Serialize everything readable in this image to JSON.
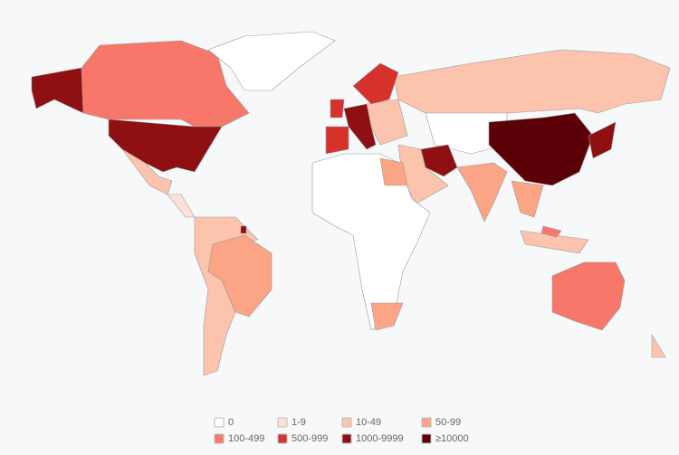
{
  "legend": {
    "items": [
      {
        "label": "0",
        "color": "#ffffff"
      },
      {
        "label": "1-9",
        "color": "#fde0d7"
      },
      {
        "label": "10-49",
        "color": "#fcc4ad"
      },
      {
        "label": "50-99",
        "color": "#fba486"
      },
      {
        "label": "100-499",
        "color": "#f7786a"
      },
      {
        "label": "500-999",
        "color": "#d7312c"
      },
      {
        "label": "1000-9999",
        "color": "#8e1013"
      },
      {
        "label": "≥10000",
        "color": "#5c0008"
      }
    ]
  }
}
